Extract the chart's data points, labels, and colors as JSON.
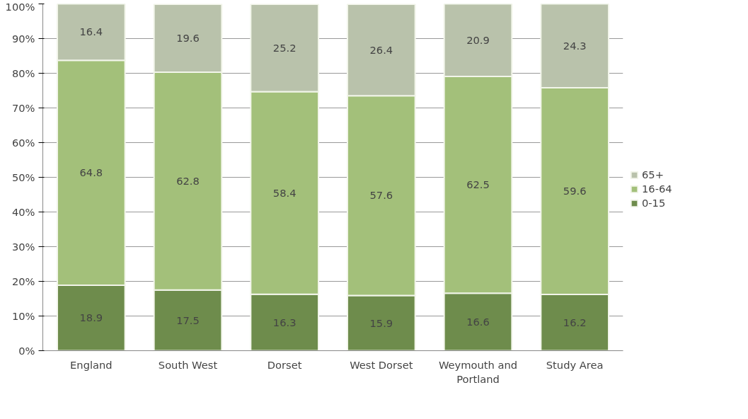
{
  "chart_data": {
    "type": "bar",
    "stacked": true,
    "categories": [
      "England",
      "South West",
      "Dorset",
      "West Dorset",
      "Weymouth and Portland",
      "Study Area"
    ],
    "series": [
      {
        "name": "0-15",
        "color": "#6e8c4c",
        "values": [
          18.9,
          17.5,
          16.3,
          15.9,
          16.6,
          16.2
        ]
      },
      {
        "name": "16-64",
        "color": "#a3c07a",
        "values": [
          64.8,
          62.8,
          58.4,
          57.6,
          62.5,
          59.6
        ]
      },
      {
        "name": "65+",
        "color": "#b9c2ab",
        "values": [
          16.4,
          19.6,
          25.2,
          26.4,
          20.9,
          24.3
        ]
      }
    ],
    "ylim": [
      0,
      100
    ],
    "yticks": [
      {
        "value": 0,
        "label": "0%"
      },
      {
        "value": 10,
        "label": "10%"
      },
      {
        "value": 20,
        "label": "20%"
      },
      {
        "value": 30,
        "label": "30%"
      },
      {
        "value": 40,
        "label": "40%"
      },
      {
        "value": 50,
        "label": "50%"
      },
      {
        "value": 60,
        "label": "60%"
      },
      {
        "value": 70,
        "label": "70%"
      },
      {
        "value": 80,
        "label": "80%"
      },
      {
        "value": 90,
        "label": "90%"
      },
      {
        "value": 100,
        "label": "100%"
      }
    ],
    "grid": "y",
    "legend": "right",
    "data_labels": true
  }
}
